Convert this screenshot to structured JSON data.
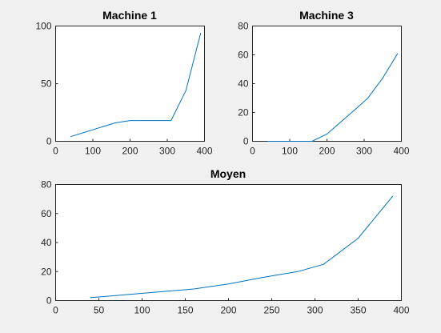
{
  "chart_data": [
    {
      "type": "line",
      "title": "Machine 1",
      "xlabel": "",
      "ylabel": "",
      "xlim": [
        0,
        400
      ],
      "ylim": [
        0,
        100
      ],
      "xticks": [
        0,
        100,
        200,
        300,
        400
      ],
      "yticks": [
        0,
        50,
        100
      ],
      "grid": false,
      "series": [
        {
          "color": "#0072bd",
          "x": [
            40,
            80,
            120,
            160,
            200,
            240,
            280,
            310,
            350,
            390
          ],
          "y": [
            4,
            8,
            12,
            16,
            18,
            18,
            18,
            18,
            44,
            94
          ]
        }
      ]
    },
    {
      "type": "line",
      "title": "Machine 3",
      "xlabel": "",
      "ylabel": "",
      "xlim": [
        0,
        400
      ],
      "ylim": [
        0,
        80
      ],
      "xticks": [
        0,
        100,
        200,
        300,
        400
      ],
      "yticks": [
        0,
        20,
        40,
        60,
        80
      ],
      "grid": false,
      "series": [
        {
          "color": "#0072bd",
          "x": [
            40,
            80,
            120,
            160,
            200,
            240,
            280,
            310,
            350,
            390
          ],
          "y": [
            0,
            0,
            0,
            0,
            5,
            14,
            23,
            30,
            44,
            61
          ]
        }
      ]
    },
    {
      "type": "line",
      "title": "Moyen",
      "xlabel": "",
      "ylabel": "",
      "xlim": [
        0,
        400
      ],
      "ylim": [
        0,
        80
      ],
      "xticks": [
        0,
        50,
        100,
        150,
        200,
        250,
        300,
        350,
        400
      ],
      "yticks": [
        0,
        20,
        40,
        60,
        80
      ],
      "grid": false,
      "series": [
        {
          "color": "#0072bd",
          "x": [
            40,
            80,
            120,
            160,
            200,
            240,
            280,
            310,
            350,
            390
          ],
          "y": [
            2,
            4,
            6,
            8,
            11.5,
            16,
            20,
            25,
            43,
            72
          ]
        }
      ]
    }
  ]
}
